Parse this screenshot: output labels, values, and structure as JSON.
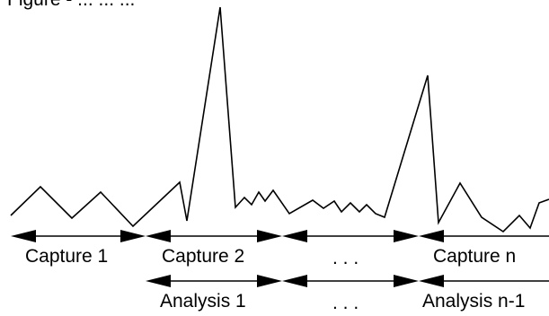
{
  "top_caption": "Figure - ... ... ...",
  "capture_row": {
    "labels": [
      "Capture 1",
      "Capture 2",
      ". . .",
      "Capture n"
    ]
  },
  "analysis_row": {
    "labels": [
      "Analysis 1",
      ". . .",
      "Analysis n-1"
    ]
  }
}
